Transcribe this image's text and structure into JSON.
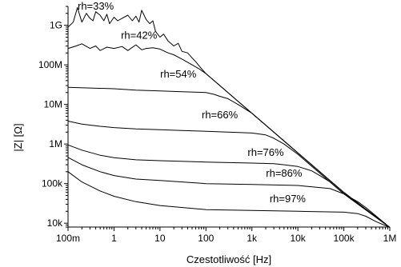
{
  "chart_data": {
    "type": "line",
    "title": "",
    "xlabel": "Czestotliwość [Hz]",
    "ylabel": "|Z| [Ω]",
    "x_scale": "log",
    "y_scale": "log",
    "xlim": [
      0.1,
      1000000
    ],
    "ylim": [
      8000,
      3000000000
    ],
    "grid": false,
    "legend": "none",
    "x_ticks": [
      {
        "value": 0.1,
        "label": "100m"
      },
      {
        "value": 1,
        "label": "1"
      },
      {
        "value": 10,
        "label": "10"
      },
      {
        "value": 100,
        "label": "100"
      },
      {
        "value": 1000,
        "label": "1k"
      },
      {
        "value": 10000,
        "label": "10k"
      },
      {
        "value": 100000,
        "label": "100k"
      },
      {
        "value": 1000000,
        "label": "1M"
      }
    ],
    "y_ticks": [
      {
        "value": 10000,
        "label": "10k"
      },
      {
        "value": 100000,
        "label": "100k"
      },
      {
        "value": 1000000,
        "label": "1M"
      },
      {
        "value": 10000000,
        "label": "10M"
      },
      {
        "value": 100000000,
        "label": "100M"
      },
      {
        "value": 1000000000,
        "label": "1G"
      }
    ],
    "series": [
      {
        "name": "rh=33%",
        "label_at": [
          0.4,
          2500000000
        ],
        "x": [
          0.1,
          0.13,
          0.16,
          0.2,
          0.25,
          0.3,
          0.35,
          0.4,
          0.5,
          0.6,
          0.7,
          0.8,
          1,
          1.2,
          1.5,
          2,
          2.5,
          3,
          3.5,
          4,
          5,
          6,
          7,
          8,
          10,
          12,
          15,
          20,
          25,
          30,
          40,
          50,
          60,
          80,
          100,
          150,
          200,
          300,
          500,
          1000,
          10000,
          100000,
          1000000
        ],
        "y": [
          900000000,
          1200000000,
          2800000000,
          1200000000,
          2000000000,
          1500000000,
          1300000000,
          2200000000,
          1800000000,
          1300000000,
          1900000000,
          1100000000,
          1600000000,
          1300000000,
          1500000000,
          1800000000,
          1300000000,
          1700000000,
          1200000000,
          2400000000,
          1400000000,
          1100000000,
          1300000000,
          700000000,
          500000000,
          600000000,
          400000000,
          300000000,
          350000000,
          220000000,
          200000000,
          150000000,
          120000000,
          80000000,
          60000000,
          40000000,
          30000000,
          20000000,
          12000000,
          6000000,
          600000,
          60000,
          7800
        ]
      },
      {
        "name": "rh=42%",
        "label_at": [
          3.5,
          460000000
        ],
        "x": [
          0.1,
          0.15,
          0.2,
          0.3,
          0.4,
          0.5,
          0.7,
          1,
          1.5,
          2,
          3,
          4,
          5,
          7,
          10,
          15,
          20,
          30,
          50,
          70,
          100,
          200,
          500,
          1000,
          10000,
          100000,
          1000000
        ],
        "y": [
          260000000,
          300000000,
          340000000,
          260000000,
          300000000,
          230000000,
          280000000,
          260000000,
          290000000,
          230000000,
          320000000,
          240000000,
          260000000,
          270000000,
          250000000,
          200000000,
          180000000,
          140000000,
          100000000,
          80000000,
          60000000,
          30000000,
          12000000,
          6000000,
          600000,
          60000,
          7800
        ]
      },
      {
        "name": "rh=54%",
        "label_at": [
          25,
          48000000
        ],
        "x": [
          0.1,
          0.3,
          1,
          3,
          10,
          30,
          100,
          150,
          200,
          300,
          500,
          1000,
          10000,
          100000,
          1000000
        ],
        "y": [
          27000000,
          26000000,
          25000000,
          23000000,
          22000000,
          21000000,
          20000000,
          18000000,
          16000000,
          14000000,
          10000000,
          6000000,
          600000,
          60000,
          7800
        ]
      },
      {
        "name": "rh=66%",
        "label_at": [
          200,
          4500000
        ],
        "x": [
          0.1,
          0.2,
          0.5,
          1,
          3,
          10,
          30,
          100,
          300,
          1000,
          2000,
          3000,
          5000,
          10000,
          100000,
          1000000
        ],
        "y": [
          3800000,
          3200000,
          2800000,
          2600000,
          2400000,
          2300000,
          2200000,
          2100000,
          2000000,
          1900000,
          1700000,
          1400000,
          1000000,
          550000,
          55000,
          7800
        ]
      },
      {
        "name": "rh=76%",
        "label_at": [
          2000,
          500000
        ],
        "x": [
          0.1,
          0.2,
          0.5,
          1,
          3,
          10,
          100,
          1000,
          3000,
          5000,
          10000,
          20000,
          30000,
          50000,
          100000,
          1000000
        ],
        "y": [
          950000,
          700000,
          520000,
          450000,
          400000,
          380000,
          350000,
          330000,
          320000,
          300000,
          270000,
          210000,
          160000,
          110000,
          55000,
          7800
        ]
      },
      {
        "name": "rh=86%",
        "label_at": [
          5000,
          150000
        ],
        "x": [
          0.1,
          0.2,
          0.5,
          1,
          3,
          10,
          100,
          1000,
          10000,
          50000,
          100000,
          200000,
          300000,
          1000000
        ],
        "y": [
          460000,
          300000,
          200000,
          160000,
          130000,
          120000,
          100000,
          95000,
          90000,
          75000,
          55000,
          35000,
          25000,
          7800
        ]
      },
      {
        "name": "rh=97%",
        "label_at": [
          6000,
          34000
        ],
        "x": [
          0.1,
          0.2,
          0.5,
          1,
          3,
          10,
          100,
          1000,
          10000,
          100000,
          200000,
          300000,
          500000,
          1000000
        ],
        "y": [
          200000,
          110000,
          65000,
          48000,
          35000,
          28000,
          22000,
          21000,
          20000,
          19000,
          17500,
          15000,
          11000,
          7800
        ]
      }
    ]
  }
}
